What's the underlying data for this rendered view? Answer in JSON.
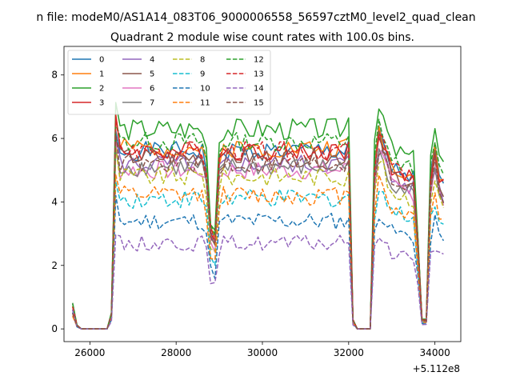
{
  "figure": {
    "suptitle": "n file: modeM0/AS1A14_083T06_9000006558_56597cztM0_level2_quad_clean"
  },
  "chart_data": {
    "type": "line",
    "title": "Quadrant 2 module wise count rates with 100.0s bins.",
    "xlabel": "",
    "ylabel": "",
    "x_offset_label": "+5.112e8",
    "xlim": [
      25400,
      34600
    ],
    "ylim": [
      -0.4,
      8.9
    ],
    "xticks": [
      26000,
      28000,
      30000,
      32000,
      34000
    ],
    "xtick_labels": [
      "26000",
      "28000",
      "30000",
      "32000",
      "34000"
    ],
    "yticks": [
      0,
      2,
      4,
      6,
      8
    ],
    "ytick_labels": [
      "0",
      "2",
      "4",
      "6",
      "8"
    ],
    "grid": false,
    "legend_placement": "top-left",
    "legend_columns": 4,
    "bin_seconds": 100,
    "x_start": 25600,
    "x_end": 34200,
    "x_step": 100,
    "series": [
      {
        "name": "0",
        "color": "#1f77b4",
        "dash": "solid",
        "level": 5.6,
        "noise": 0.3,
        "seed": 1
      },
      {
        "name": "1",
        "color": "#ff7f0e",
        "dash": "solid",
        "level": 5.7,
        "noise": 0.3,
        "seed": 2
      },
      {
        "name": "2",
        "color": "#2ca02c",
        "dash": "solid",
        "level": 6.3,
        "noise": 0.35,
        "seed": 3
      },
      {
        "name": "3",
        "color": "#d62728",
        "dash": "solid",
        "level": 5.6,
        "noise": 0.3,
        "seed": 4
      },
      {
        "name": "4",
        "color": "#9467bd",
        "dash": "solid",
        "level": 5.2,
        "noise": 0.3,
        "seed": 5
      },
      {
        "name": "5",
        "color": "#8c564b",
        "dash": "solid",
        "level": 5.4,
        "noise": 0.3,
        "seed": 6
      },
      {
        "name": "6",
        "color": "#e377c2",
        "dash": "solid",
        "level": 5.0,
        "noise": 0.3,
        "seed": 7
      },
      {
        "name": "7",
        "color": "#7f7f7f",
        "dash": "solid",
        "level": 5.1,
        "noise": 0.3,
        "seed": 8
      },
      {
        "name": "8",
        "color": "#bcbd22",
        "dash": "dashed",
        "level": 4.8,
        "noise": 0.3,
        "seed": 9
      },
      {
        "name": "9",
        "color": "#17becf",
        "dash": "dashed",
        "level": 4.1,
        "noise": 0.3,
        "seed": 10
      },
      {
        "name": "10",
        "color": "#1f77b4",
        "dash": "dashed",
        "level": 3.4,
        "noise": 0.28,
        "seed": 11
      },
      {
        "name": "11",
        "color": "#ff7f0e",
        "dash": "dashed",
        "level": 4.2,
        "noise": 0.3,
        "seed": 12
      },
      {
        "name": "12",
        "color": "#2ca02c",
        "dash": "dashed",
        "level": 5.9,
        "noise": 0.3,
        "seed": 13
      },
      {
        "name": "13",
        "color": "#d62728",
        "dash": "dashed",
        "level": 5.6,
        "noise": 0.3,
        "seed": 14
      },
      {
        "name": "14",
        "color": "#9467bd",
        "dash": "dashed",
        "level": 2.7,
        "noise": 0.25,
        "seed": 15
      },
      {
        "name": "15",
        "color": "#8c564b",
        "dash": "dashed",
        "level": 5.2,
        "noise": 0.3,
        "seed": 16
      }
    ],
    "envelope": [
      [
        25600,
        0.12
      ],
      [
        25700,
        0.02
      ],
      [
        25800,
        0.0
      ],
      [
        26400,
        0.0
      ],
      [
        26500,
        0.08
      ],
      [
        26550,
        0.5
      ],
      [
        26600,
        1.15
      ],
      [
        26700,
        1.0
      ],
      [
        28600,
        1.0
      ],
      [
        28700,
        0.9
      ],
      [
        28800,
        0.55
      ],
      [
        28900,
        0.5
      ],
      [
        29000,
        0.95
      ],
      [
        29100,
        1.0
      ],
      [
        31900,
        1.0
      ],
      [
        32000,
        1.05
      ],
      [
        32100,
        0.05
      ],
      [
        32200,
        0.0
      ],
      [
        32500,
        0.0
      ],
      [
        32600,
        0.9
      ],
      [
        32700,
        1.1
      ],
      [
        32800,
        1.05
      ],
      [
        33000,
        0.9
      ],
      [
        33500,
        0.85
      ],
      [
        33600,
        0.5
      ],
      [
        33700,
        0.05
      ],
      [
        33800,
        0.05
      ],
      [
        33900,
        0.85
      ],
      [
        34000,
        1.0
      ],
      [
        34100,
        0.85
      ],
      [
        34200,
        0.8
      ]
    ]
  }
}
